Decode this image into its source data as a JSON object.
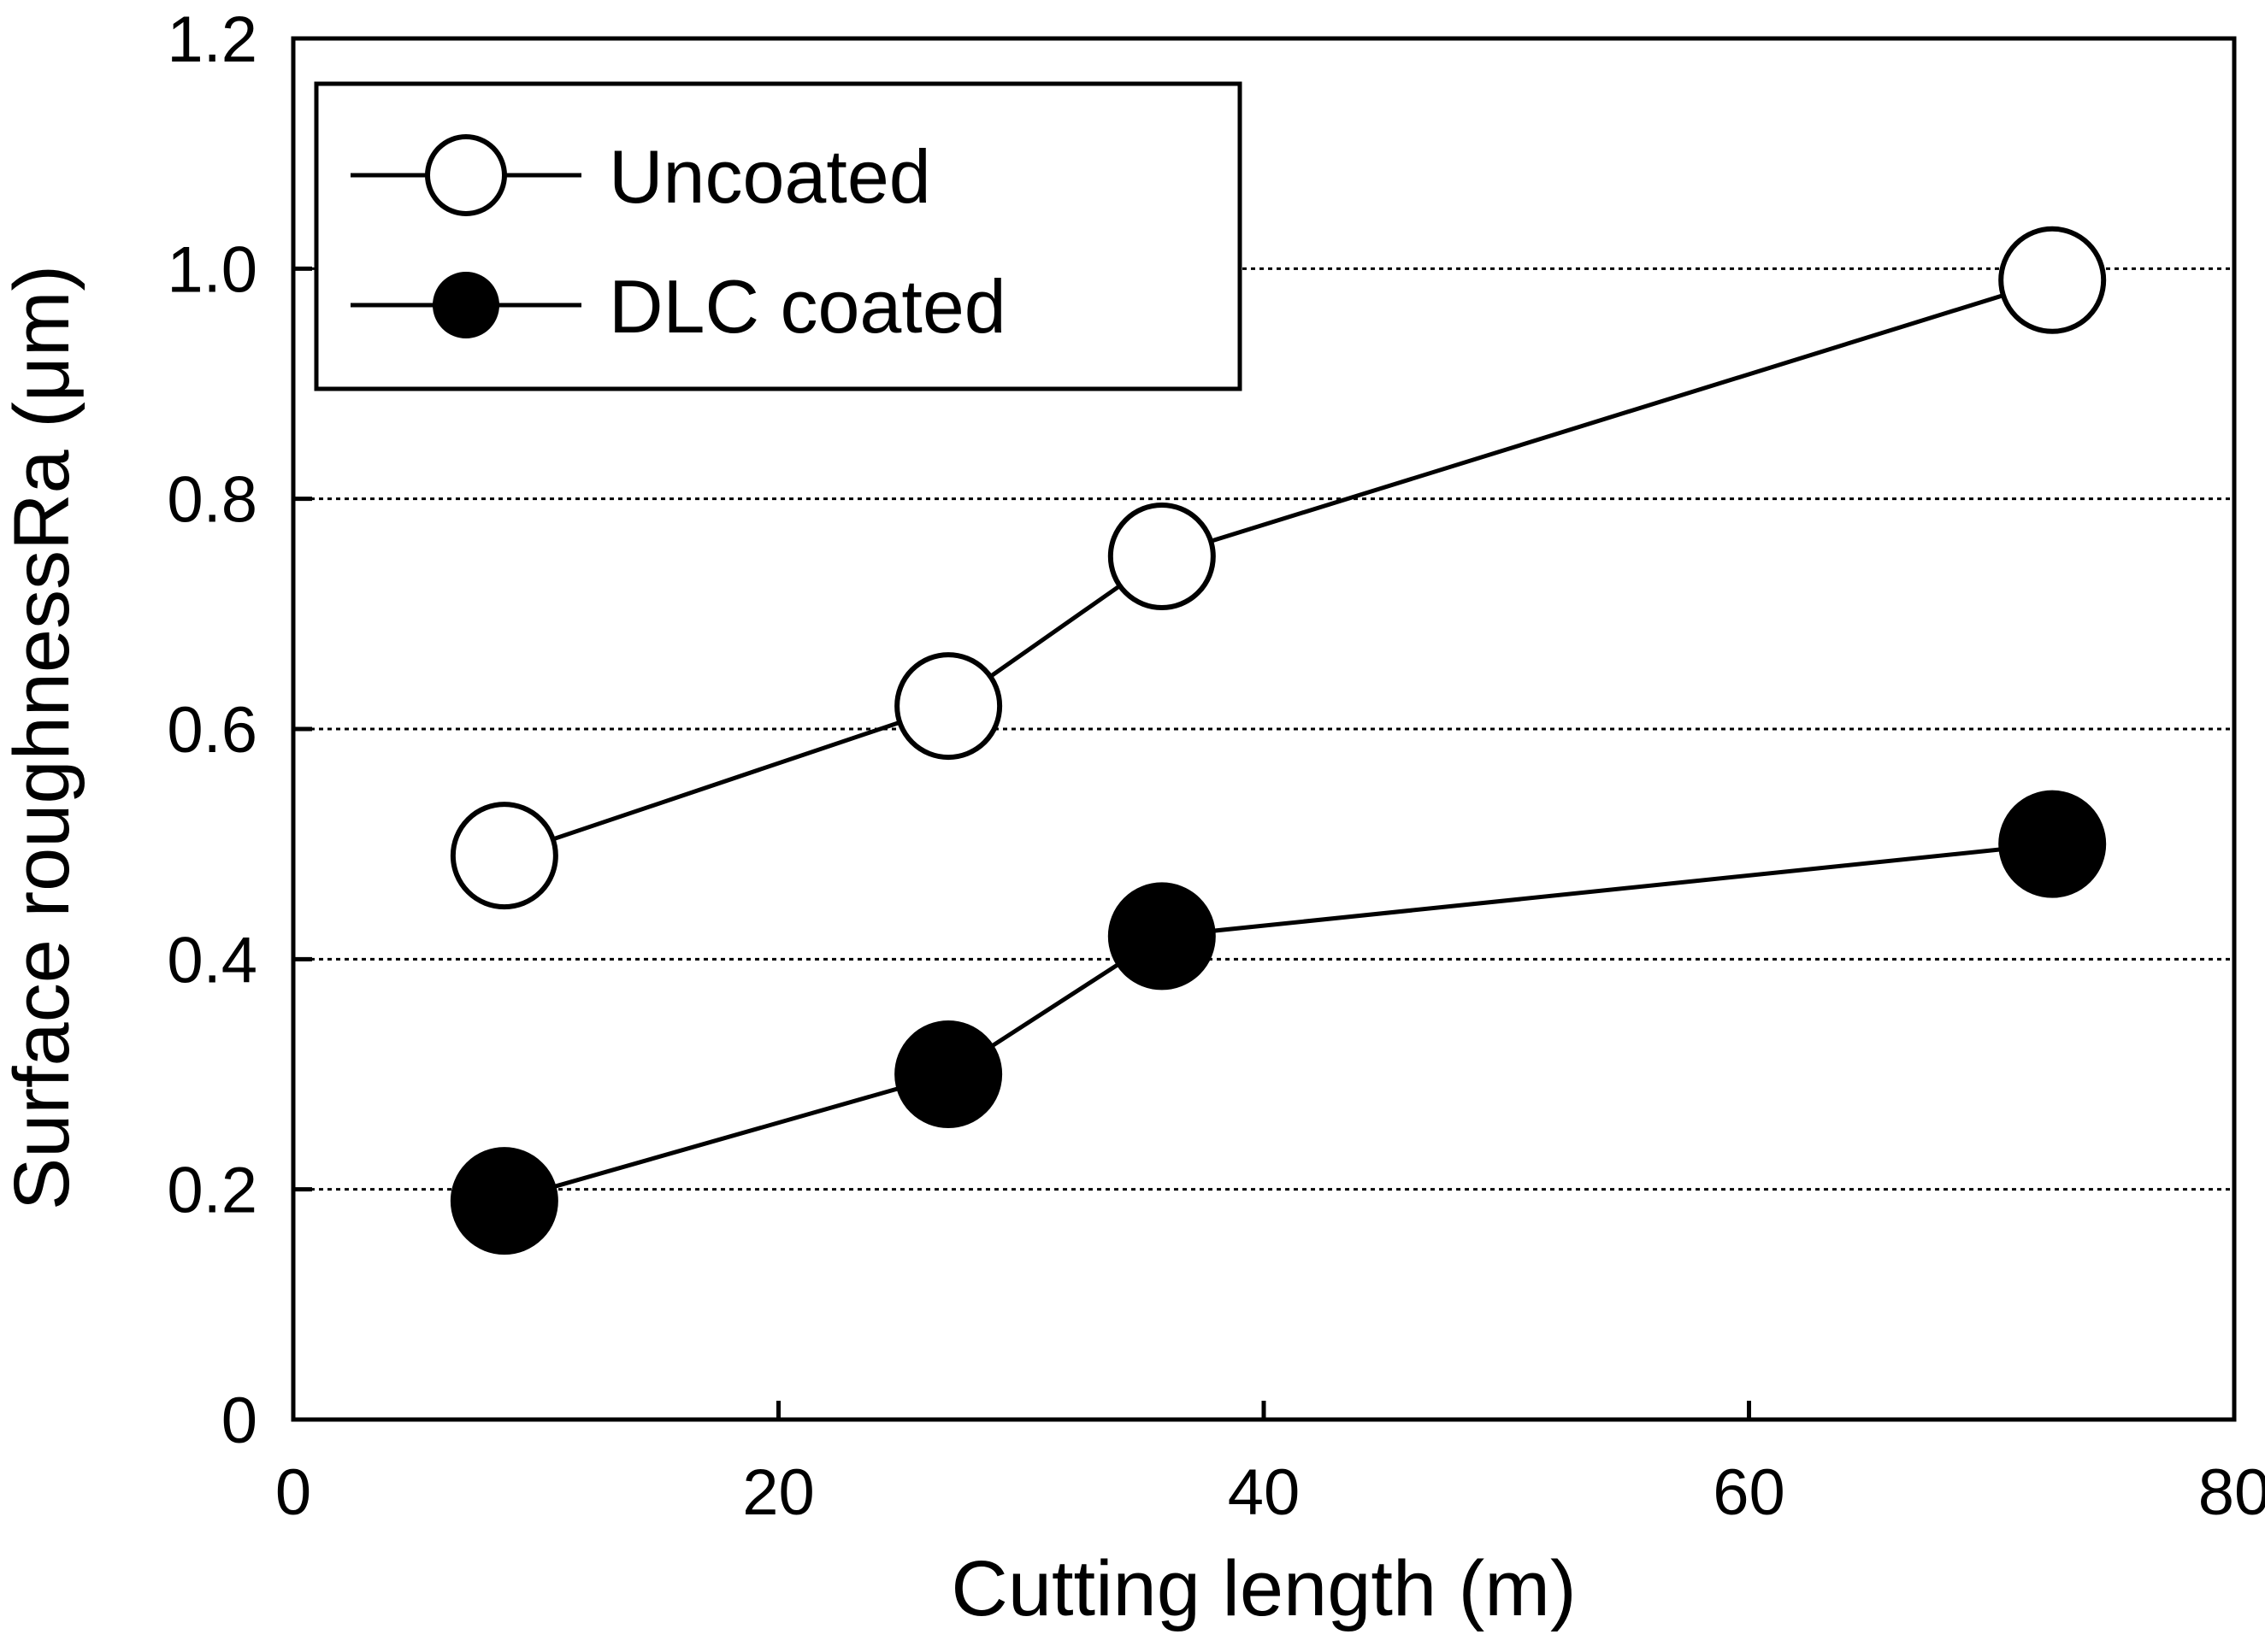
{
  "chart_data": {
    "type": "line",
    "title": "",
    "xlabel": "Cutting length  (m)",
    "ylabel": "Surface roughnessRa (μm)",
    "xlim": [
      0,
      80
    ],
    "ylim": [
      0,
      1.2
    ],
    "xticks": [
      0,
      20,
      40,
      60,
      80
    ],
    "xtick_labels": [
      "0",
      "20",
      "40",
      "60",
      "80"
    ],
    "yticks": [
      0,
      0.2,
      0.4,
      0.6,
      0.8,
      1.0,
      1.2
    ],
    "ytick_labels": [
      "0",
      "0.2",
      "0.4",
      "0.6",
      "0.8",
      "1.0",
      "1.2"
    ],
    "grid": "horizontal dotted lines at 0.2, 0.4, 0.6, 0.8 and 1.0",
    "legend_position": "top-left",
    "series": [
      {
        "name": "Uncoated",
        "marker": "open-circle",
        "x": [
          8.7,
          27.0,
          35.8,
          72.5
        ],
        "y": [
          0.49,
          0.62,
          0.75,
          0.99
        ]
      },
      {
        "name": "DLC coated",
        "marker": "filled-circle",
        "x": [
          8.7,
          27.0,
          35.8,
          72.5
        ],
        "y": [
          0.19,
          0.3,
          0.42,
          0.5
        ]
      }
    ],
    "colors": {
      "line": "#000000",
      "open_marker_fill": "#ffffff",
      "filled_marker_fill": "#000000",
      "gridline": "#000000"
    }
  }
}
